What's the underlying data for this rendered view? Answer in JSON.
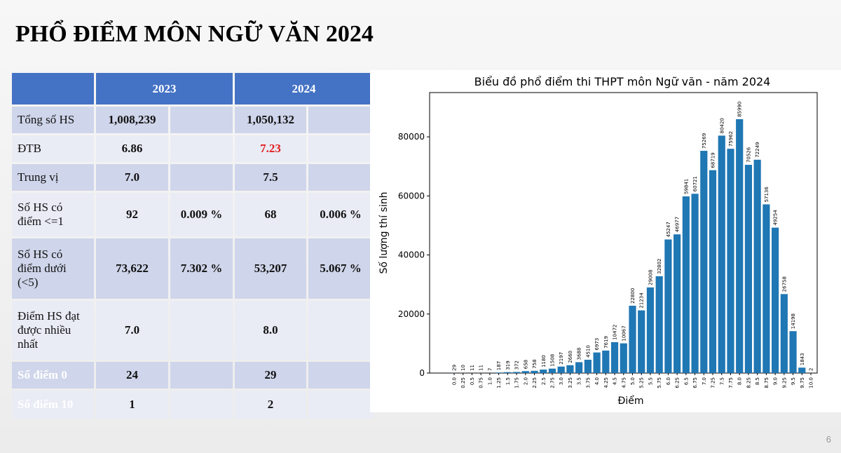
{
  "header": {
    "title": "PHỔ ĐIỂM MÔN NGỮ VĂN 2024"
  },
  "table": {
    "header": [
      "2023",
      "2024"
    ],
    "rows": [
      [
        "Tổng số HS",
        "1,008,239",
        null,
        "1,050,132",
        null
      ],
      [
        "ĐTB",
        "6.86",
        null,
        "7.23",
        null
      ],
      [
        "Trung vị",
        "7.0",
        null,
        "7.5",
        null
      ],
      [
        "Số HS có điểm <=1",
        "92",
        "0.009 %",
        "68",
        "0.006 %"
      ],
      [
        "Số HS có điểm dưới (<5)",
        "73,622",
        "7.302 %",
        "53,207",
        "5.067 %"
      ],
      [
        "Điểm HS đạt được nhiều nhất",
        "7.0",
        null,
        "8.0",
        null
      ],
      [
        "Số điểm 0",
        "24",
        null,
        "29",
        null
      ],
      [
        "Số điểm 10",
        "1",
        null,
        "2",
        null
      ]
    ]
  },
  "chart_data": {
    "type": "bar",
    "title": "Biểu đồ phổ điểm thi THPT môn Ngữ văn - năm 2024",
    "x_label": "Điểm",
    "y_label": "Số lượng thí sinh",
    "categories": [
      "0.0",
      "0.25",
      "0.5",
      "0.75",
      "1.0",
      "1.25",
      "1.5",
      "1.75",
      "2.0",
      "2.25",
      "2.5",
      "2.75",
      "3.0",
      "3.25",
      "3.5",
      "3.75",
      "4.0",
      "4.25",
      "4.5",
      "4.75",
      "5.0",
      "5.25",
      "5.5",
      "5.75",
      "6.0",
      "6.25",
      "6.5",
      "6.75",
      "7.0",
      "7.25",
      "7.5",
      "7.75",
      "8.0",
      "8.25",
      "8.5",
      "8.75",
      "9.0",
      "9.25",
      "9.5",
      "9.75",
      "10.0"
    ],
    "values": [
      29,
      10,
      11,
      11,
      7,
      187,
      319,
      372,
      658,
      758,
      1180,
      1508,
      2197,
      2660,
      3688,
      4510,
      6973,
      7619,
      10472,
      10067,
      22800,
      21234,
      29008,
      32802,
      45247,
      46977,
      59841,
      60721,
      75269,
      68719,
      80420,
      75962,
      85990,
      70526,
      72249,
      57136,
      49254,
      26758,
      14198,
      1843,
      2
    ],
    "color": "#1f77b4",
    "ylim": [
      0,
      95000
    ],
    "yticks": [
      0,
      20000,
      40000,
      60000,
      80000
    ]
  },
  "page_number": "6"
}
